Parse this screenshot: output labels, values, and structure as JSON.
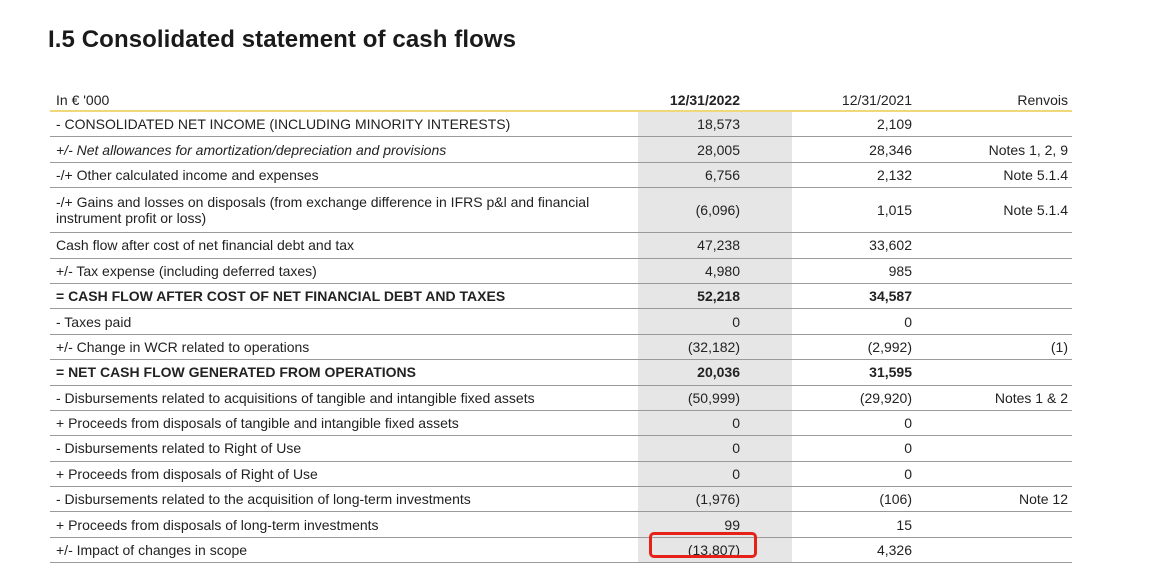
{
  "title": "I.5 Consolidated statement of cash flows",
  "header": {
    "unit": "In € '000",
    "col_2022": "12/31/2022",
    "col_2021": "12/31/2021",
    "col_ref": "Renvois"
  },
  "rows": [
    {
      "label": "- CONSOLIDATED NET INCOME (INCLUDING MINORITY INTERESTS)",
      "v2022": "18,573",
      "v2021": "2,109",
      "ref": ""
    },
    {
      "label": "+/- Net allowances for amortization/depreciation and provisions",
      "v2022": "28,005",
      "v2021": "28,346",
      "ref": "Notes 1, 2, 9"
    },
    {
      "label": "-/+ Other calculated income and expenses",
      "v2022": "6,756",
      "v2021": "2,132",
      "ref": "Note 5.1.4"
    },
    {
      "label": "-/+ Gains and losses on disposals (from exchange difference in IFRS p&l and financial instrument profit or loss)",
      "v2022": "(6,096)",
      "v2021": "1,015",
      "ref": "Note 5.1.4"
    },
    {
      "label": "Cash flow after cost of net financial debt and tax",
      "v2022": "47,238",
      "v2021": "33,602",
      "ref": ""
    },
    {
      "label": "+/- Tax expense (including deferred taxes)",
      "v2022": "4,980",
      "v2021": "985",
      "ref": ""
    },
    {
      "label": "= CASH FLOW AFTER COST OF NET FINANCIAL DEBT AND TAXES",
      "v2022": "52,218",
      "v2021": "34,587",
      "ref": ""
    },
    {
      "label": "- Taxes paid",
      "v2022": "0",
      "v2021": "0",
      "ref": ""
    },
    {
      "label": "+/- Change in WCR related to operations",
      "v2022": "(32,182)",
      "v2021": "(2,992)",
      "ref": "(1)"
    },
    {
      "label": "= NET CASH FLOW GENERATED FROM OPERATIONS",
      "v2022": "20,036",
      "v2021": "31,595",
      "ref": ""
    },
    {
      "label": "- Disbursements related to acquisitions of tangible and intangible fixed assets",
      "v2022": "(50,999)",
      "v2021": "(29,920)",
      "ref": "Notes 1 & 2"
    },
    {
      "label": "+ Proceeds from disposals of tangible and intangible fixed assets",
      "v2022": "0",
      "v2021": "0",
      "ref": ""
    },
    {
      "label": "- Disbursements related to Right of Use",
      "v2022": "0",
      "v2021": "0",
      "ref": ""
    },
    {
      "label": "+ Proceeds from disposals of Right of Use",
      "v2022": "0",
      "v2021": "0",
      "ref": ""
    },
    {
      "label": "- Disbursements related to the acquisition of long-term investments",
      "v2022": "(1,976)",
      "v2021": "(106)",
      "ref": "Note 12"
    },
    {
      "label": "+ Proceeds from disposals of long-term investments",
      "v2022": "99",
      "v2021": "15",
      "ref": ""
    },
    {
      "label": "+/- Impact of changes in scope",
      "v2022": "(13,807)",
      "v2021": "4,326",
      "ref": ""
    }
  ],
  "colors": {
    "highlight_border": "#e62118",
    "header_rule": "#f0d77a",
    "shaded_column": "#e6e6e6"
  }
}
